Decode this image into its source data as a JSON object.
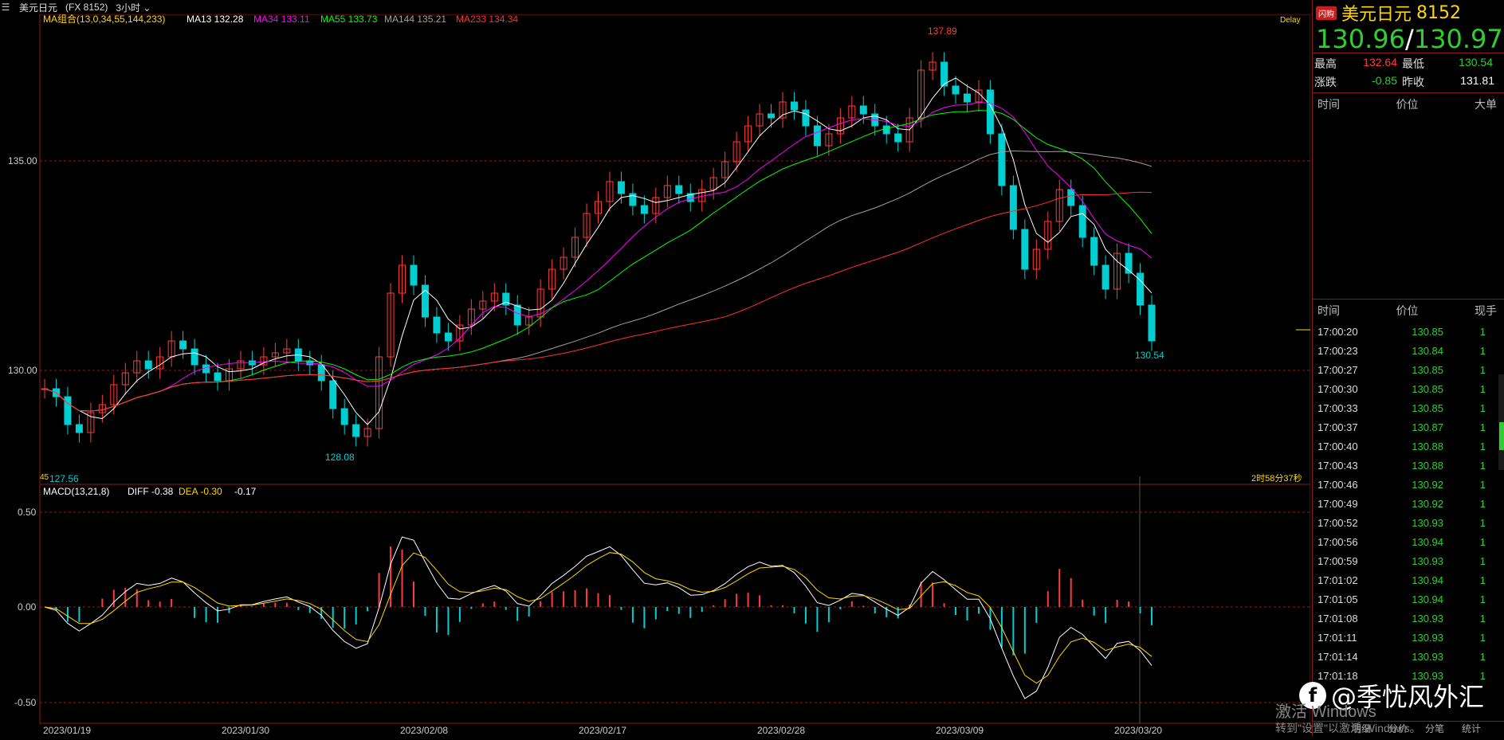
{
  "topbar": {
    "symbol": "美元日元",
    "code": "(FX 8152)",
    "period": "3小时"
  },
  "legend": {
    "ma_group": "MA组合(13,0,34,55,144,233)",
    "ma13": "MA13 132.28",
    "ma34": "MA34 133.11",
    "ma55": "MA55 133.73",
    "ma144": "MA144 135.21",
    "ma233": "MA233 134.34"
  },
  "delay_label": "Delay",
  "price_axis": {
    "label_135": "135.00",
    "label_130": "130.00"
  },
  "annotations": {
    "high": "137.89",
    "low_mid": "128.08",
    "low_left": "127.56",
    "last_low": "130.54",
    "countdown": "2时58分37秒",
    "left_small": "45"
  },
  "macd": {
    "legend": "MACD(13,21,8)",
    "diff": "DIFF -0.38",
    "dea": "DEA -0.30",
    "macd": "-0.17",
    "axis_top": "0.50",
    "axis_mid": "0.00",
    "axis_bot": "-0.50"
  },
  "x_axis": [
    "2023/01/19",
    "2023/01/30",
    "2023/02/08",
    "2023/02/17",
    "2023/02/28",
    "2023/03/09",
    "2023/03/20"
  ],
  "right_panel": {
    "badge": "闪购",
    "title": "美元日元",
    "code": "8152",
    "bid": "130.96",
    "sep": "/",
    "ask": "130.97",
    "high_label": "最高",
    "high": "132.64",
    "low_label": "最低",
    "low": "130.54",
    "chg_label": "涨跌",
    "chg": "-0.85",
    "prev_label": "昨收",
    "prev": "131.81",
    "hdr1": [
      "时间",
      "价位",
      "大单"
    ],
    "hdr2": [
      "时间",
      "价位",
      "现手"
    ],
    "ticks": [
      [
        "17:00:20",
        "130.85",
        "1"
      ],
      [
        "17:00:23",
        "130.84",
        "1"
      ],
      [
        "17:00:27",
        "130.85",
        "1"
      ],
      [
        "17:00:30",
        "130.85",
        "1"
      ],
      [
        "17:00:33",
        "130.85",
        "1"
      ],
      [
        "17:00:37",
        "130.87",
        "1"
      ],
      [
        "17:00:40",
        "130.88",
        "1"
      ],
      [
        "17:00:43",
        "130.88",
        "1"
      ],
      [
        "17:00:46",
        "130.92",
        "1"
      ],
      [
        "17:00:49",
        "130.92",
        "1"
      ],
      [
        "17:00:52",
        "130.93",
        "1"
      ],
      [
        "17:00:56",
        "130.94",
        "1"
      ],
      [
        "17:00:59",
        "130.93",
        "1"
      ],
      [
        "17:01:02",
        "130.94",
        "1"
      ],
      [
        "17:01:05",
        "130.94",
        "1"
      ],
      [
        "17:01:08",
        "130.93",
        "1"
      ],
      [
        "17:01:11",
        "130.93",
        "1"
      ],
      [
        "17:01:14",
        "130.93",
        "1"
      ],
      [
        "17:01:18",
        "130.93",
        "1"
      ]
    ],
    "tabs": [
      "明细",
      "分价",
      "分笔",
      "统计"
    ]
  },
  "watermark": {
    "line1": "激活 Windows",
    "line2": "转到\"设置\"以激活 Windows。"
  },
  "brand": "@季忧风外汇",
  "colors": {
    "up": "#ff3b3b",
    "down": "#00ced1",
    "ma13": "#ffffff",
    "ma34": "#ff00ff",
    "ma55": "#00ff00",
    "ma144": "#a0a0a0",
    "ma233": "#ff3030",
    "grid": "#8b1a1a"
  },
  "chart_data": {
    "type": "candlestick",
    "title": "美元日元 3小时",
    "ylim": [
      127.0,
      138.5
    ],
    "closes": [
      129.4,
      129.2,
      128.5,
      128.3,
      128.8,
      129.0,
      129.5,
      129.8,
      130.1,
      129.9,
      130.2,
      130.6,
      130.4,
      130.0,
      129.8,
      129.6,
      129.9,
      130.1,
      130.0,
      130.2,
      130.3,
      130.4,
      130.1,
      130.0,
      129.6,
      128.9,
      128.5,
      128.2,
      128.4,
      130.2,
      131.8,
      132.5,
      132.0,
      131.2,
      130.8,
      130.6,
      131.0,
      131.4,
      131.6,
      131.8,
      131.5,
      131.0,
      131.2,
      131.9,
      132.4,
      132.7,
      133.2,
      133.8,
      134.1,
      134.6,
      134.3,
      134.0,
      133.8,
      134.2,
      134.5,
      134.3,
      134.1,
      134.4,
      134.7,
      135.1,
      135.6,
      136.0,
      136.3,
      136.2,
      136.6,
      136.4,
      136.0,
      135.5,
      135.8,
      136.2,
      136.5,
      136.3,
      136.0,
      135.8,
      135.6,
      136.2,
      137.4,
      137.6,
      137.0,
      136.8,
      136.6,
      136.9,
      135.8,
      134.5,
      133.4,
      132.4,
      132.9,
      133.6,
      134.4,
      134.0,
      133.2,
      132.5,
      131.9,
      132.8,
      132.3,
      131.5,
      130.6
    ]
  }
}
